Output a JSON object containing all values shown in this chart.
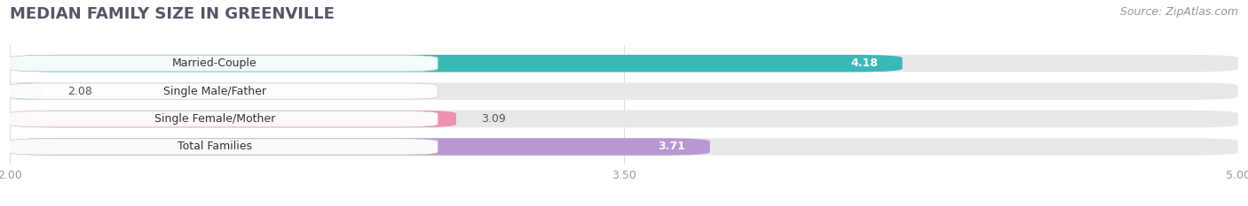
{
  "title": "MEDIAN FAMILY SIZE IN GREENVILLE",
  "source": "Source: ZipAtlas.com",
  "categories": [
    "Married-Couple",
    "Single Male/Father",
    "Single Female/Mother",
    "Total Families"
  ],
  "values": [
    4.18,
    2.08,
    3.09,
    3.71
  ],
  "bar_colors": [
    "#3ab8b8",
    "#aac4e8",
    "#f090b0",
    "#b898d0"
  ],
  "xlim": [
    2.0,
    5.0
  ],
  "xticks": [
    2.0,
    3.5,
    5.0
  ],
  "xtick_labels": [
    "2.00",
    "3.50",
    "5.00"
  ],
  "background_color": "#ffffff",
  "bar_bg_color": "#e8e8e8",
  "title_fontsize": 13,
  "source_fontsize": 9,
  "label_fontsize": 9,
  "value_fontsize": 9
}
